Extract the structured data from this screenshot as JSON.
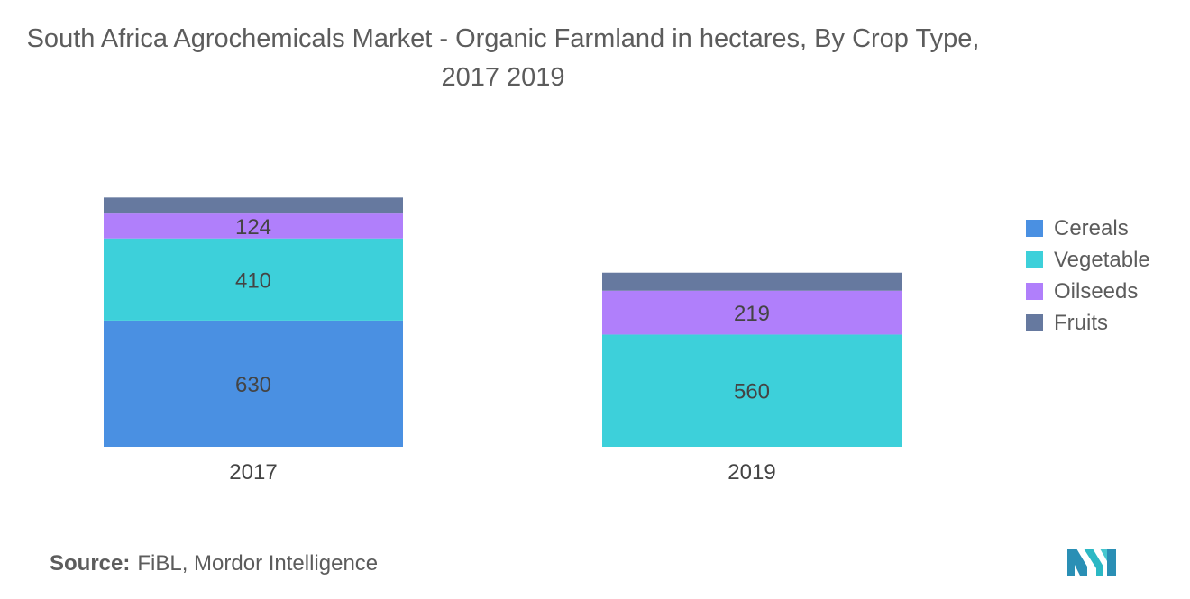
{
  "title": "South Africa Agrochemicals Market - Organic Farmland in hectares, By Crop Type, 2017 2019",
  "source": {
    "label": "Source:",
    "text": "FiBL, Mordor Intelligence"
  },
  "colors": {
    "Cereals": "#4a90e2",
    "Vegetable": "#3dd0da",
    "Oilseeds": "#b07ffb",
    "Fruits": "#66799f",
    "text": "#5c5c5c",
    "label": "#444444"
  },
  "chart_data": {
    "type": "bar",
    "stacked": true,
    "title": "South Africa Agrochemicals Market - Organic Farmland in hectares, By Crop Type, 2017 2019",
    "categories": [
      "2017",
      "2019"
    ],
    "series": [
      {
        "name": "Cereals",
        "values": [
          630,
          0
        ]
      },
      {
        "name": "Vegetable",
        "values": [
          410,
          560
        ]
      },
      {
        "name": "Oilseeds",
        "values": [
          124,
          219
        ]
      },
      {
        "name": "Fruits",
        "values": [
          80,
          90
        ]
      }
    ],
    "data_labels": {
      "Cereals": [
        "630",
        ""
      ],
      "Vegetable": [
        "410",
        "560"
      ],
      "Oilseeds": [
        "124",
        "219"
      ],
      "Fruits": [
        "",
        ""
      ]
    },
    "xlabel": "",
    "ylabel": "",
    "legend_position": "right",
    "grid": false,
    "y_axis_visible": false
  }
}
